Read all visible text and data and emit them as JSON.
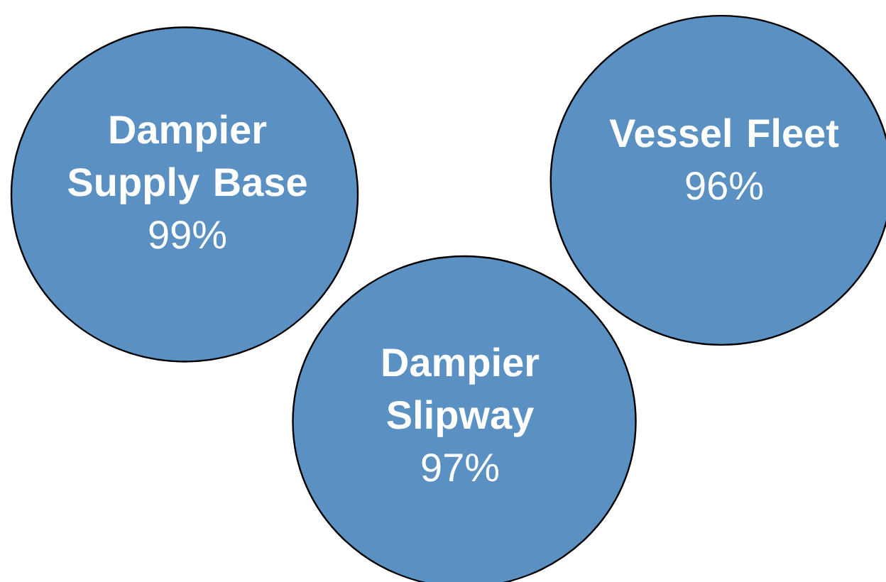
{
  "chart_data": {
    "type": "other",
    "categories": [
      "Dampier Supply Base",
      "Vessel Fleet",
      "Dampier Slipway"
    ],
    "values": [
      99,
      96,
      97
    ],
    "value_labels": [
      "99%",
      "96%",
      "97%"
    ],
    "colors": [
      "#5a91c2",
      "#5a91c2",
      "#5a91c2"
    ]
  }
}
